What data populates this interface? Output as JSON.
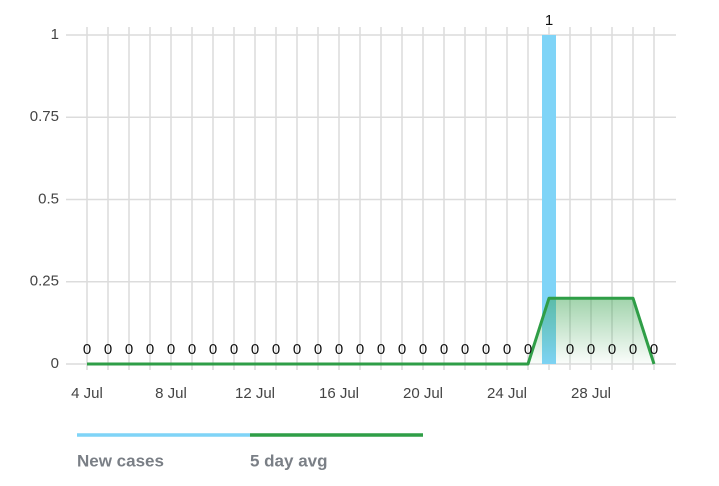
{
  "chart_data": {
    "type": "bar-line",
    "categories": [
      "4 Jul",
      null,
      null,
      null,
      "8 Jul",
      null,
      null,
      null,
      "12 Jul",
      null,
      null,
      null,
      "16 Jul",
      null,
      null,
      null,
      "20 Jul",
      null,
      null,
      null,
      "24 Jul",
      null,
      null,
      null,
      "28 Jul",
      null,
      null,
      null
    ],
    "series": [
      {
        "name": "New cases",
        "type": "bar",
        "color": "#7fd4f7",
        "values": [
          0,
          0,
          0,
          0,
          0,
          0,
          0,
          0,
          0,
          0,
          0,
          0,
          0,
          0,
          0,
          0,
          0,
          0,
          0,
          0,
          0,
          0,
          1,
          0,
          0,
          0,
          0,
          0
        ]
      },
      {
        "name": "5 day avg",
        "type": "line",
        "color": "#2f9e47",
        "values": [
          0,
          0,
          0,
          0,
          0,
          0,
          0,
          0,
          0,
          0,
          0,
          0,
          0,
          0,
          0,
          0,
          0,
          0,
          0,
          0,
          0,
          0,
          0.2,
          0.2,
          0.2,
          0.2,
          0.2,
          0
        ]
      }
    ],
    "ylim": [
      0,
      1
    ],
    "yticks": [
      0,
      0.25,
      0.5,
      0.75,
      1
    ],
    "grid": true
  }
}
